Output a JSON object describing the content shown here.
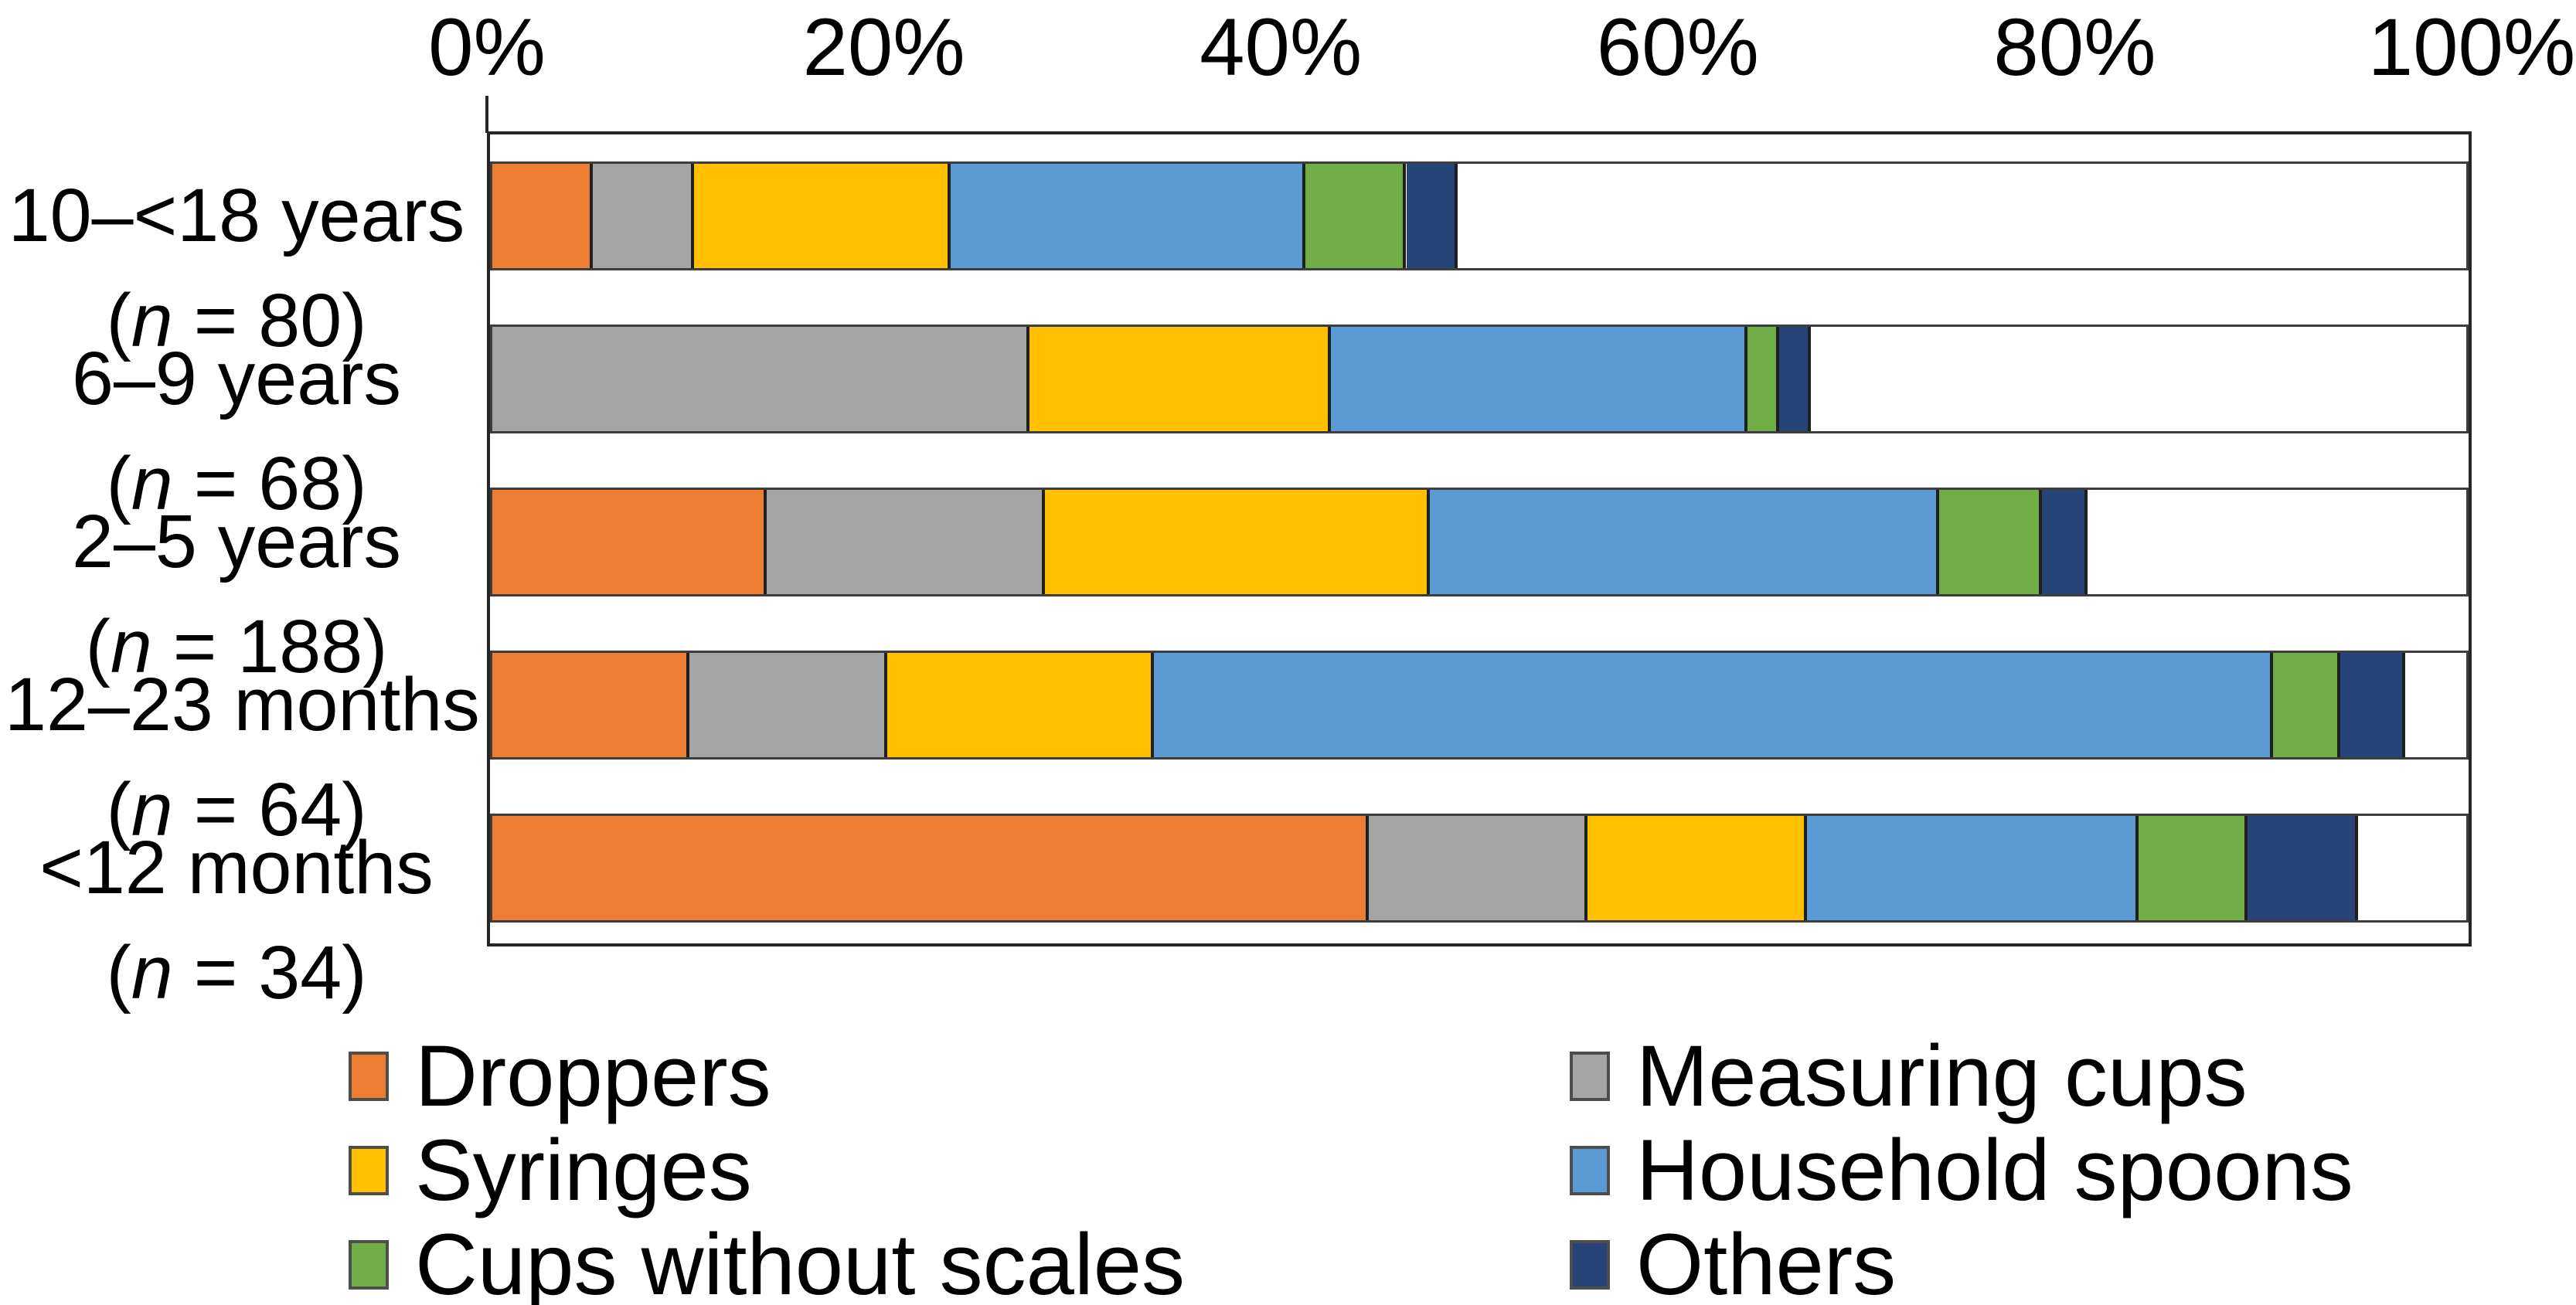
{
  "chart_data": {
    "type": "bar",
    "subtype": "horizontal_stacked_100",
    "title": "",
    "x_axis": {
      "position": "top",
      "range": [
        0,
        100
      ],
      "tick_labels": [
        "0%",
        "20%",
        "40%",
        "60%",
        "80%",
        "100%"
      ],
      "tick_values": [
        0,
        20,
        40,
        60,
        80,
        100
      ]
    },
    "grid": false,
    "categories": [
      {
        "label": "10–<18 years",
        "n": "80"
      },
      {
        "label": "6–9 years",
        "n": "68"
      },
      {
        "label": "2–5 years",
        "n": "188"
      },
      {
        "label": "12–23 months",
        "n": "64"
      },
      {
        "label": "<12 months",
        "n": "34"
      }
    ],
    "series": [
      {
        "name": "Droppers",
        "color": "#ED7D31",
        "values": [
          5.1,
          0.0,
          13.9,
          10.0,
          44.4
        ]
      },
      {
        "name": "Measuring cups",
        "color": "#A5A5A5",
        "values": [
          5.1,
          27.2,
          14.1,
          10.0,
          11.1
        ]
      },
      {
        "name": "Syringes",
        "color": "#FFC000",
        "values": [
          13.0,
          15.3,
          19.5,
          13.5,
          11.1
        ]
      },
      {
        "name": "Household spoons",
        "color": "#5B9BD5",
        "values": [
          18.0,
          21.1,
          25.8,
          56.7,
          16.8
        ]
      },
      {
        "name": "Cups without scales",
        "color": "#70AD47",
        "values": [
          5.1,
          1.6,
          5.2,
          3.4,
          5.5
        ]
      },
      {
        "name": "Others",
        "color": "#264478",
        "values": [
          2.6,
          1.6,
          2.3,
          3.3,
          5.6
        ]
      }
    ],
    "legend": {
      "position": "bottom",
      "columns": [
        [
          "Droppers",
          "Syringes",
          "Cups without scales"
        ],
        [
          "Measuring cups",
          "Household spoons",
          "Others"
        ]
      ]
    }
  }
}
